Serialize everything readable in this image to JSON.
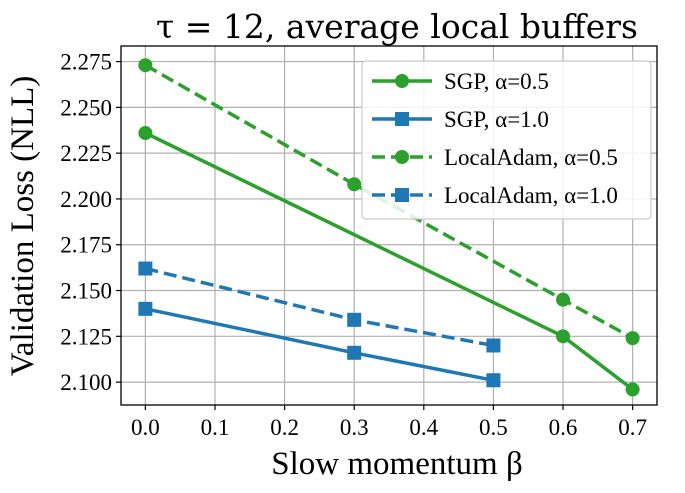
{
  "chart_data": {
    "type": "line",
    "title": "τ = 12, average local buffers",
    "xlabel": "Slow momentum β",
    "ylabel": "Validation Loss (NLL)",
    "xlim": [
      -0.035,
      0.735
    ],
    "ylim": [
      2.0875,
      2.2835
    ],
    "xticks": [
      0.0,
      0.1,
      0.2,
      0.3,
      0.4,
      0.5,
      0.6,
      0.7
    ],
    "xtick_labels": [
      "0.0",
      "0.1",
      "0.2",
      "0.3",
      "0.4",
      "0.5",
      "0.6",
      "0.7"
    ],
    "yticks": [
      2.1,
      2.125,
      2.15,
      2.175,
      2.2,
      2.225,
      2.25,
      2.275
    ],
    "ytick_labels": [
      "2.100",
      "2.125",
      "2.150",
      "2.175",
      "2.200",
      "2.225",
      "2.250",
      "2.275"
    ],
    "grid": true,
    "legend_position": "top-right",
    "series": [
      {
        "name": "SGP, α=0.5",
        "color": "#2ca02c",
        "marker": "circle",
        "dash": "solid",
        "x": [
          0.0,
          0.6,
          0.7
        ],
        "y": [
          2.236,
          2.125,
          2.096
        ]
      },
      {
        "name": "SGP, α=1.0",
        "color": "#1f77b4",
        "marker": "square",
        "dash": "solid",
        "x": [
          0.0,
          0.3,
          0.5
        ],
        "y": [
          2.14,
          2.116,
          2.101
        ]
      },
      {
        "name": "LocalAdam, α=0.5",
        "color": "#2ca02c",
        "marker": "circle",
        "dash": "dashed",
        "x": [
          0.0,
          0.3,
          0.6,
          0.7
        ],
        "y": [
          2.273,
          2.208,
          2.145,
          2.124
        ]
      },
      {
        "name": "LocalAdam, α=1.0",
        "color": "#1f77b4",
        "marker": "square",
        "dash": "dashed",
        "x": [
          0.0,
          0.3,
          0.5
        ],
        "y": [
          2.162,
          2.134,
          2.12
        ]
      }
    ]
  }
}
